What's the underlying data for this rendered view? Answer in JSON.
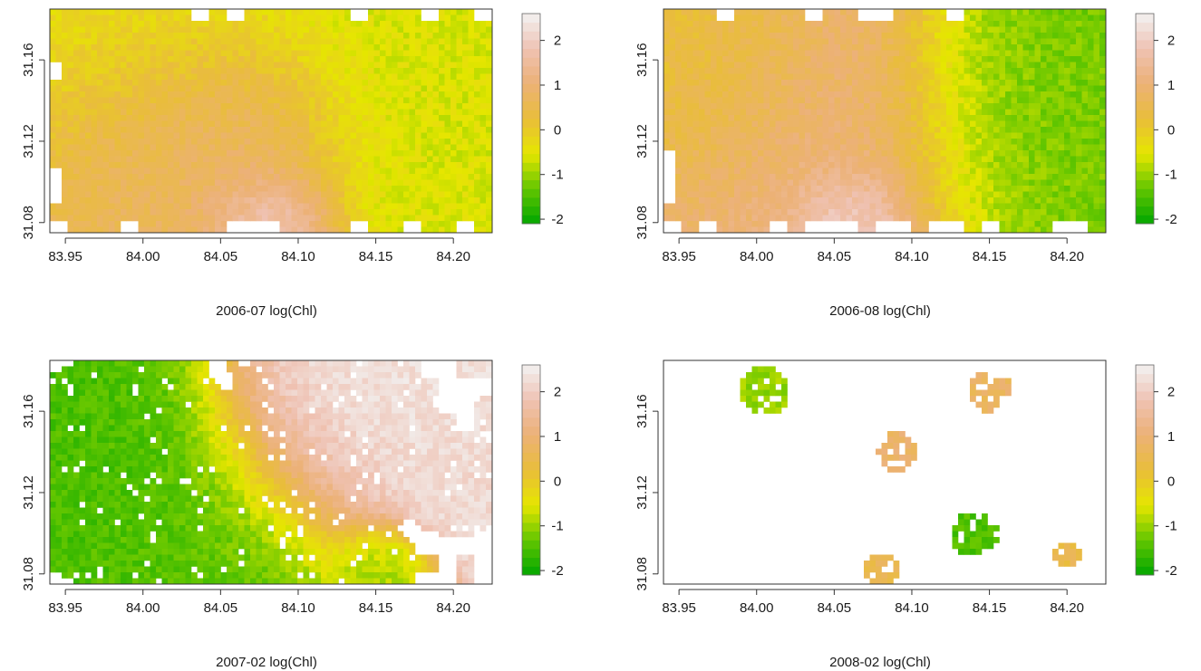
{
  "figure": {
    "layout": "2x2 grid of raster maps",
    "colormap": "terrain",
    "colormap_stops": [
      "#00a600",
      "#63c600",
      "#e6e600",
      "#e9bd3a",
      "#ecb176",
      "#efc2b3",
      "#f2f2f2"
    ],
    "missing_color": "#ffffff"
  },
  "chart_data": [
    {
      "type": "heatmap",
      "title": "",
      "xlabel": "2006-07 log(Chl)",
      "ylabel": "",
      "xlim": [
        83.94,
        84.225
      ],
      "ylim": [
        31.075,
        31.185
      ],
      "x_ticks": [
        83.95,
        84.0,
        84.05,
        84.1,
        84.15,
        84.2
      ],
      "x_tick_labels": [
        "83.95",
        "84.00",
        "84.05",
        "84.10",
        "84.15",
        "84.20"
      ],
      "y_ticks": [
        31.08,
        31.12,
        31.16
      ],
      "y_tick_labels": [
        "31.08",
        "31.12",
        "31.16"
      ],
      "zlim": [
        -2.1,
        2.6
      ],
      "colorbar_ticks": [
        2,
        1,
        0,
        -1,
        -2
      ],
      "colorbar_tick_labels": [
        "2",
        "1",
        "0",
        "-1",
        "-2"
      ],
      "coverage": "nearly complete",
      "features": [
        {
          "x": 84.085,
          "y": 31.082,
          "value": 2.5,
          "extent": 0.022
        },
        {
          "x": 84.07,
          "y": 31.12,
          "value": 1.2,
          "extent": 0.035
        },
        {
          "x": 84.02,
          "y": 31.12,
          "value": 0.9,
          "extent": 0.04
        },
        {
          "x": 84.15,
          "y": 31.13,
          "value": -0.6,
          "extent": 0.06
        },
        {
          "x": 84.01,
          "y": 31.165,
          "value": -0.3,
          "extent": 0.05
        }
      ]
    },
    {
      "type": "heatmap",
      "title": "",
      "xlabel": "2006-08 log(Chl)",
      "ylabel": "",
      "xlim": [
        83.94,
        84.225
      ],
      "ylim": [
        31.075,
        31.185
      ],
      "x_ticks": [
        83.95,
        84.0,
        84.05,
        84.1,
        84.15,
        84.2
      ],
      "x_tick_labels": [
        "83.95",
        "84.00",
        "84.05",
        "84.10",
        "84.15",
        "84.20"
      ],
      "y_ticks": [
        31.08,
        31.12,
        31.16
      ],
      "y_tick_labels": [
        "31.08",
        "31.12",
        "31.16"
      ],
      "zlim": [
        -2.1,
        2.6
      ],
      "colorbar_ticks": [
        2,
        1,
        0,
        -1,
        -2
      ],
      "colorbar_tick_labels": [
        "2",
        "1",
        "0",
        "-1",
        "-2"
      ],
      "coverage": "nearly complete",
      "features": [
        {
          "x": 84.06,
          "y": 31.08,
          "value": 2.4,
          "extent": 0.02
        },
        {
          "x": 84.04,
          "y": 31.12,
          "value": 1.1,
          "extent": 0.055
        },
        {
          "x": 84.18,
          "y": 31.13,
          "value": -1.2,
          "extent": 0.05
        },
        {
          "x": 83.97,
          "y": 31.15,
          "value": 0.2,
          "extent": 0.04
        }
      ]
    },
    {
      "type": "heatmap",
      "title": "",
      "xlabel": "2007-02 log(Chl)",
      "ylabel": "",
      "xlim": [
        83.94,
        84.225
      ],
      "ylim": [
        31.075,
        31.185
      ],
      "x_ticks": [
        83.95,
        84.0,
        84.05,
        84.1,
        84.15,
        84.2
      ],
      "x_tick_labels": [
        "83.95",
        "84.00",
        "84.05",
        "84.10",
        "84.15",
        "84.20"
      ],
      "y_ticks": [
        31.08,
        31.12,
        31.16
      ],
      "y_tick_labels": [
        "31.08",
        "31.12",
        "31.16"
      ],
      "zlim": [
        -2.1,
        2.6
      ],
      "colorbar_ticks": [
        2,
        1,
        0,
        -1,
        -2
      ],
      "colorbar_tick_labels": [
        "2",
        "1",
        "0",
        "-1",
        "-2"
      ],
      "coverage": "partial",
      "features": [
        {
          "x": 83.99,
          "y": 31.13,
          "value": -1.5,
          "extent": 0.045
        },
        {
          "x": 84.06,
          "y": 31.1,
          "value": -1.4,
          "extent": 0.04
        },
        {
          "x": 84.12,
          "y": 31.145,
          "value": 2.3,
          "extent": 0.04
        },
        {
          "x": 84.2,
          "y": 31.125,
          "value": 2.2,
          "extent": 0.02
        },
        {
          "x": 84.15,
          "y": 31.085,
          "value": -1.0,
          "extent": 0.015
        }
      ]
    },
    {
      "type": "heatmap",
      "title": "",
      "xlabel": "2008-02 log(Chl)",
      "ylabel": "",
      "xlim": [
        83.94,
        84.225
      ],
      "ylim": [
        31.075,
        31.185
      ],
      "x_ticks": [
        83.95,
        84.0,
        84.05,
        84.1,
        84.15,
        84.2
      ],
      "x_tick_labels": [
        "83.95",
        "84.00",
        "84.05",
        "84.10",
        "84.15",
        "84.20"
      ],
      "y_ticks": [
        31.08,
        31.12,
        31.16
      ],
      "y_tick_labels": [
        "31.08",
        "31.12",
        "31.16"
      ],
      "zlim": [
        -2.1,
        2.6
      ],
      "colorbar_ticks": [
        2,
        1,
        0,
        -1,
        -2
      ],
      "colorbar_tick_labels": [
        "2",
        "1",
        "0",
        "-1",
        "-2"
      ],
      "coverage": "sparse",
      "features": [
        {
          "x": 84.005,
          "y": 31.17,
          "value": -1.0,
          "extent": 0.015
        },
        {
          "x": 84.09,
          "y": 31.14,
          "value": 0.9,
          "extent": 0.012
        },
        {
          "x": 84.14,
          "y": 31.1,
          "value": -1.5,
          "extent": 0.014
        },
        {
          "x": 84.15,
          "y": 31.17,
          "value": 0.8,
          "extent": 0.013
        },
        {
          "x": 84.08,
          "y": 31.082,
          "value": 0.6,
          "extent": 0.01
        },
        {
          "x": 84.2,
          "y": 31.09,
          "value": 0.5,
          "extent": 0.008
        }
      ]
    }
  ]
}
